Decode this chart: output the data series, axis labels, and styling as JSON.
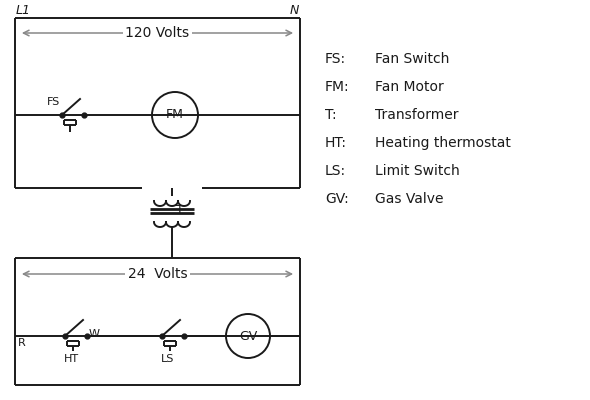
{
  "bg_color": "#ffffff",
  "line_color": "#1a1a1a",
  "arrow_color": "#888888",
  "legend": [
    [
      "FS:",
      "Fan Switch"
    ],
    [
      "FM:",
      "Fan Motor"
    ],
    [
      "T:",
      "Transformer"
    ],
    [
      "HT:",
      "Heating thermostat"
    ],
    [
      "LS:",
      "Limit Switch"
    ],
    [
      "GV:",
      "Gas Valve"
    ]
  ],
  "volts_120": "120 Volts",
  "volts_24": "24  Volts",
  "L1": "L1",
  "N": "N",
  "fig_w": 5.9,
  "fig_h": 4.0,
  "dpi": 100
}
